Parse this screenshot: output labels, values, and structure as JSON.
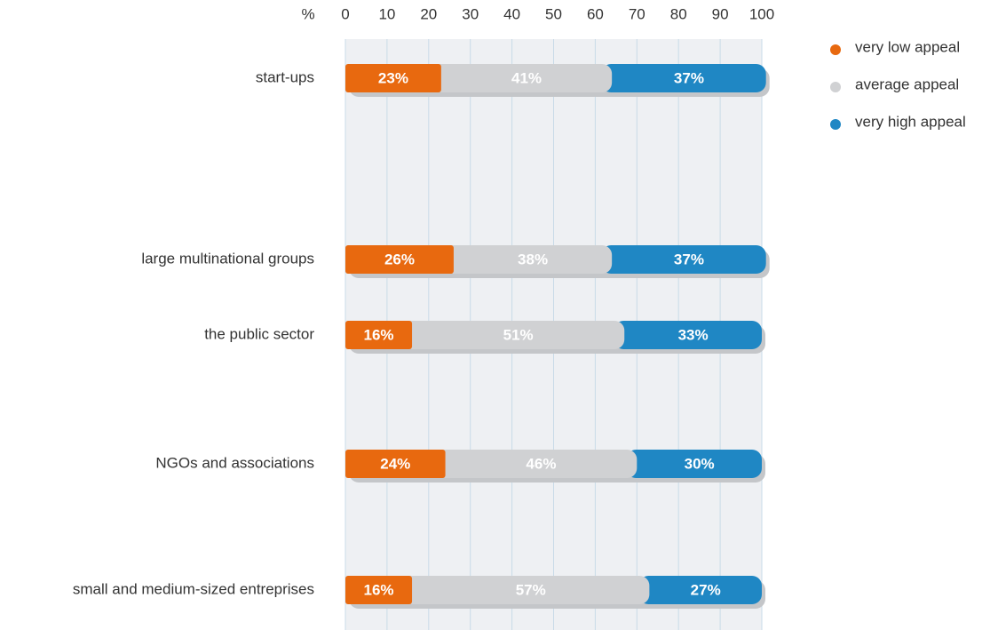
{
  "chart_data": {
    "type": "stacked_bar_horizontal",
    "x_label": "%",
    "categories": [
      "start-ups",
      "large multinational groups",
      "the public sector",
      "NGOs and associations",
      "small and medium-sized entreprises"
    ],
    "series": [
      {
        "name": "very low appeal",
        "color": "#e8690f",
        "values": [
          23,
          26,
          16,
          24,
          16
        ],
        "value_labels": [
          "23%",
          "26%",
          "16%",
          "24%",
          "16%"
        ]
      },
      {
        "name": "average appeal",
        "color": "#d0d1d3",
        "values": [
          41,
          38,
          51,
          46,
          57
        ],
        "value_labels": [
          "41%",
          "38%",
          "51%",
          "46%",
          "57%"
        ]
      },
      {
        "name": "very high appeal",
        "color": "#1f87c4",
        "values": [
          37,
          37,
          33,
          30,
          27
        ],
        "value_labels": [
          "37%",
          "37%",
          "33%",
          "30%",
          "27%"
        ]
      }
    ],
    "xlim": [
      0,
      100
    ],
    "xticks": [
      0,
      10,
      20,
      30,
      40,
      50,
      60,
      70,
      80,
      90,
      100
    ],
    "grid": true,
    "legend": "right"
  }
}
